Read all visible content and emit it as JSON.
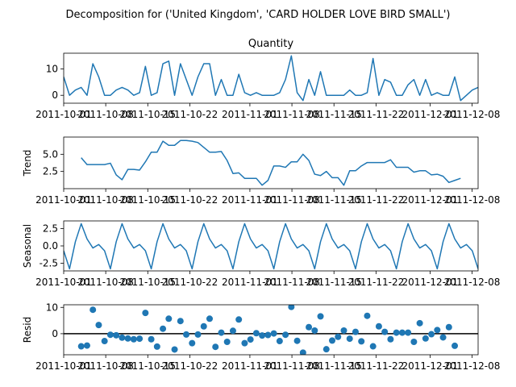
{
  "suptitle": "Decomposition for ('United Kingdom', 'CARD HOLDER LOVE BIRD SMALL')",
  "chart_data": [
    {
      "type": "line",
      "title": "Quantity",
      "ylabel": "",
      "ylim": [
        -3,
        16
      ],
      "yticks": [
        0,
        10
      ],
      "x_start": "2011-10-01",
      "x_end": "2011-12-09",
      "xticks": [
        "2011-10-01",
        "2011-10-08",
        "2011-10-15",
        "2011-10-22",
        "2011-11-01",
        "2011-11-08",
        "2011-11-15",
        "2011-11-22",
        "2011-12-01",
        "2011-12-08"
      ],
      "color": "#1f77b4",
      "values": [
        7,
        0,
        2,
        3,
        0,
        12,
        7,
        0,
        0,
        2,
        3,
        2,
        0,
        1,
        11,
        0,
        1,
        12,
        13,
        0,
        12,
        6,
        0,
        7,
        12,
        12,
        0,
        6,
        0,
        0,
        8,
        1,
        0,
        1,
        0,
        0,
        0,
        1,
        6,
        15,
        1,
        -2,
        6,
        0,
        9,
        0,
        0,
        0,
        0,
        2,
        0,
        0,
        1,
        14,
        0,
        6,
        5,
        0,
        0,
        4,
        6,
        0,
        6,
        0,
        1,
        0,
        0,
        7,
        -2,
        0,
        2,
        3
      ]
    },
    {
      "type": "line",
      "title": "",
      "ylabel": "Trend",
      "ylim": [
        0.0,
        7.5
      ],
      "yticks": [
        2.5,
        5.0
      ],
      "x_start": "2011-10-01",
      "x_end": "2011-12-09",
      "xticks": [
        "2011-10-01",
        "2011-10-08",
        "2011-10-15",
        "2011-10-22",
        "2011-11-01",
        "2011-11-08",
        "2011-11-15",
        "2011-11-22",
        "2011-12-01",
        "2011-12-08"
      ],
      "color": "#1f77b4",
      "values": [
        null,
        null,
        null,
        4.5,
        3.5,
        3.5,
        3.5,
        3.5,
        3.7,
        2.0,
        1.3,
        2.8,
        2.8,
        2.7,
        3.9,
        5.3,
        5.3,
        6.9,
        6.3,
        6.3,
        7.0,
        7.0,
        6.9,
        6.7,
        6.0,
        5.3,
        5.3,
        5.4,
        4.1,
        2.2,
        2.3,
        1.5,
        1.5,
        1.5,
        0.5,
        1.2,
        3.3,
        3.3,
        3.1,
        3.9,
        3.9,
        5.0,
        4.1,
        2.1,
        1.9,
        2.5,
        1.6,
        1.6,
        0.5,
        2.6,
        2.6,
        3.3,
        3.8,
        3.8,
        3.8,
        3.8,
        4.2,
        3.1,
        3.1,
        3.1,
        2.4,
        2.6,
        2.6,
        2.0,
        2.1,
        1.8,
        0.9,
        1.2,
        1.5,
        null,
        null,
        null
      ]
    },
    {
      "type": "line",
      "title": "",
      "ylabel": "Seasonal",
      "ylim": [
        -3.6,
        3.6
      ],
      "yticks": [
        -2.5,
        0.0,
        2.5
      ],
      "x_start": "2011-10-01",
      "x_end": "2011-12-09",
      "xticks": [
        "2011-10-01",
        "2011-10-08",
        "2011-10-15",
        "2011-10-22",
        "2011-11-01",
        "2011-11-08",
        "2011-11-15",
        "2011-11-22",
        "2011-12-01",
        "2011-12-08"
      ],
      "color": "#1f77b4",
      "values": [
        -0.7,
        -3.3,
        0.6,
        3.2,
        1.0,
        -0.3,
        0.2,
        -0.7,
        -3.3,
        0.6,
        3.2,
        1.0,
        -0.3,
        0.2,
        -0.7,
        -3.3,
        0.6,
        3.2,
        1.0,
        -0.3,
        0.2,
        -0.7,
        -3.3,
        0.6,
        3.2,
        1.0,
        -0.3,
        0.2,
        -0.7,
        -3.3,
        0.6,
        3.2,
        1.0,
        -0.3,
        0.2,
        -0.7,
        -3.3,
        0.6,
        3.2,
        1.0,
        -0.3,
        0.2,
        -0.7,
        -3.3,
        0.6,
        3.2,
        1.0,
        -0.3,
        0.2,
        -0.7,
        -3.3,
        0.6,
        3.2,
        1.0,
        -0.3,
        0.2,
        -0.7,
        -3.3,
        0.6,
        3.2,
        1.0,
        -0.3,
        0.2,
        -0.7,
        -3.3,
        0.6,
        3.2,
        1.0,
        -0.3,
        0.2,
        -0.7,
        -3.3
      ]
    },
    {
      "type": "scatter",
      "title": "",
      "ylabel": "Resid",
      "ylim": [
        -8,
        11
      ],
      "yticks": [
        0,
        10
      ],
      "baseline": 0,
      "x_start": "2011-10-01",
      "x_end": "2011-12-09",
      "xticks": [
        "2011-10-01",
        "2011-10-08",
        "2011-10-15",
        "2011-10-22",
        "2011-11-01",
        "2011-11-08",
        "2011-11-15",
        "2011-11-22",
        "2011-12-01",
        "2011-12-08"
      ],
      "color": "#1f77b4",
      "values": [
        null,
        null,
        null,
        -4.8,
        -4.5,
        9.1,
        3.3,
        -2.8,
        -0.4,
        -0.6,
        -1.5,
        -1.8,
        -2.1,
        -1.9,
        7.9,
        -2.1,
        -4.9,
        1.9,
        5.7,
        -6.0,
        4.8,
        -0.3,
        -3.6,
        -0.3,
        2.8,
        5.7,
        -5.0,
        0.4,
        -3.1,
        1.1,
        5.4,
        -3.6,
        -2.2,
        0.2,
        -0.7,
        -0.5,
        0.1,
        -2.8,
        -0.4,
        10.2,
        -2.7,
        -7.2,
        2.5,
        1.2,
        6.6,
        -5.9,
        -2.6,
        -1.2,
        1.2,
        -1.9,
        0.7,
        -2.9,
        6.8,
        -4.8,
        2.8,
        0.7,
        -2.1,
        0.4,
        0.4,
        0.4,
        -3.1,
        4.0,
        -1.8,
        -0.2,
        1.4,
        -1.4,
        2.5,
        -4.6,
        null,
        null,
        null,
        null
      ]
    }
  ]
}
